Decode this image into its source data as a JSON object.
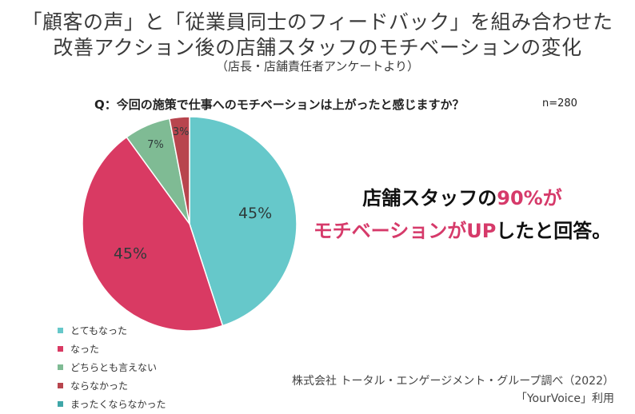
{
  "header": {
    "title_line1": "「顧客の声」と「従業員同士のフィードバック」を組み合わせた",
    "title_line2": "改善アクション後の店舗スタッフのモチベーションの変化",
    "subtitle": "（店長・店舗責任者アンケートより）"
  },
  "chart_data": {
    "type": "pie",
    "question": "Q：今回の施策で仕事へのモチベーションは上がったと感じますか？",
    "sample_size": "n=280",
    "slices": [
      {
        "label": "とてもなった",
        "value": 45,
        "display": "45%",
        "color": "#66c8ca"
      },
      {
        "label": "なった",
        "value": 45,
        "display": "45%",
        "color": "#d93a63"
      },
      {
        "label": "どちらとも言えない",
        "value": 7,
        "display": "7%",
        "color": "#7fbb94"
      },
      {
        "label": "ならなかった",
        "value": 3,
        "display": "3%",
        "color": "#b8454e"
      },
      {
        "label": "まったくならなかった",
        "value": 0,
        "display": "",
        "color": "#3fa6a8"
      }
    ]
  },
  "callout": {
    "line1_prefix": "店舗スタッフの",
    "line1_highlight": "90%が",
    "line2_highlight": "モチベーションがUP",
    "line2_suffix": "したと回答。"
  },
  "source": {
    "line1": "株式会社 トータル・エンゲージメント・グループ調べ（2022）",
    "line2": "「YourVoice」利用"
  }
}
